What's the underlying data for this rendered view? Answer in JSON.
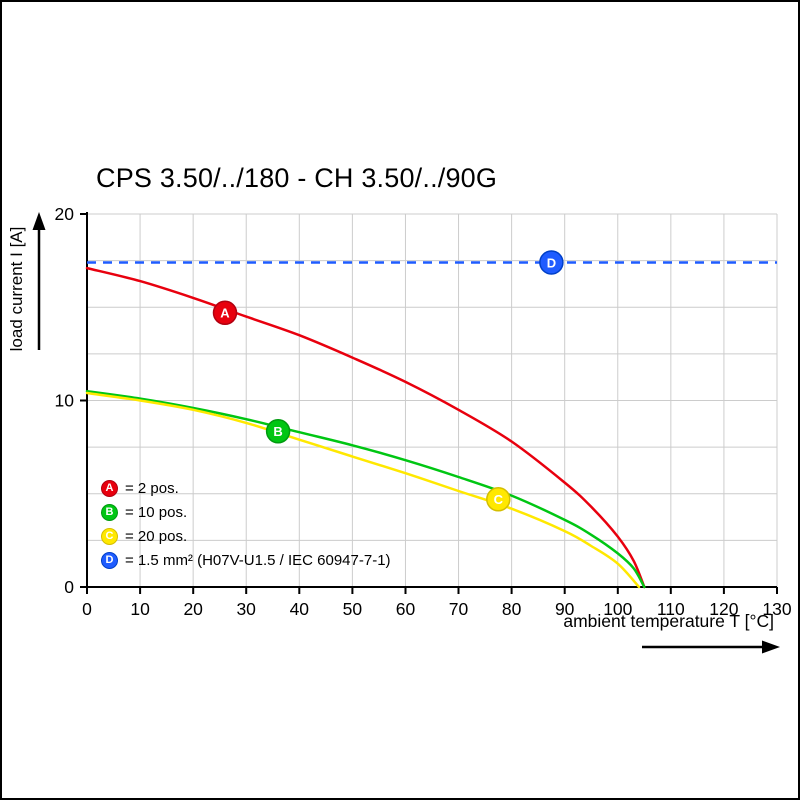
{
  "chart_data": {
    "type": "line",
    "title": "CPS 3.50/../180 - CH 3.50/../90G",
    "xlabel": "ambient temperature T [°C]",
    "ylabel": "load current I [A]",
    "xlim": [
      0,
      130
    ],
    "ylim": [
      0,
      20
    ],
    "x_ticks": [
      0,
      10,
      20,
      30,
      40,
      50,
      60,
      70,
      80,
      90,
      100,
      110,
      120,
      130
    ],
    "y_ticks": [
      0,
      10,
      20
    ],
    "y_grid_step": 2.5,
    "grid": true,
    "grid_color": "#cccccc",
    "axis_color": "#000000",
    "legend_position": "inside bottom-left",
    "series": [
      {
        "id": "A",
        "name": "2 pos.",
        "legend_label": "= 2 pos.",
        "color": "#e8000e",
        "edge": "#b00010",
        "letter_color": "#ffffff",
        "style": "solid",
        "marker_at": [
          26,
          14.7
        ],
        "points": [
          [
            0,
            17.1
          ],
          [
            10,
            16.4
          ],
          [
            20,
            15.5
          ],
          [
            30,
            14.5
          ],
          [
            40,
            13.5
          ],
          [
            50,
            12.3
          ],
          [
            60,
            11.0
          ],
          [
            70,
            9.5
          ],
          [
            80,
            7.8
          ],
          [
            90,
            5.6
          ],
          [
            95,
            4.3
          ],
          [
            100,
            2.7
          ],
          [
            103,
            1.4
          ],
          [
            105,
            0
          ]
        ]
      },
      {
        "id": "B",
        "name": "10 pos.",
        "legend_label": "= 10 pos.",
        "color": "#00c613",
        "edge": "#009a0f",
        "letter_color": "#ffffff",
        "style": "solid",
        "marker_at": [
          36,
          8.35
        ],
        "points": [
          [
            0,
            10.5
          ],
          [
            10,
            10.1
          ],
          [
            20,
            9.6
          ],
          [
            30,
            9.0
          ],
          [
            40,
            8.3
          ],
          [
            50,
            7.6
          ],
          [
            60,
            6.8
          ],
          [
            70,
            5.9
          ],
          [
            80,
            4.9
          ],
          [
            90,
            3.6
          ],
          [
            95,
            2.8
          ],
          [
            100,
            1.8
          ],
          [
            103,
            1.0
          ],
          [
            105,
            0
          ]
        ]
      },
      {
        "id": "C",
        "name": "20 pos.",
        "legend_label": "= 20 pos.",
        "color": "#ffe800",
        "edge": "#d4be00",
        "letter_color": "#ffffff",
        "style": "solid",
        "marker_at": [
          77.5,
          4.7
        ],
        "points": [
          [
            0,
            10.4
          ],
          [
            10,
            10.0
          ],
          [
            20,
            9.5
          ],
          [
            30,
            8.8
          ],
          [
            40,
            7.9
          ],
          [
            50,
            7.0
          ],
          [
            60,
            6.1
          ],
          [
            70,
            5.15
          ],
          [
            80,
            4.2
          ],
          [
            90,
            3.0
          ],
          [
            95,
            2.2
          ],
          [
            100,
            1.25
          ],
          [
            104,
            0
          ]
        ]
      },
      {
        "id": "D",
        "name": "1.5 mm² (H07V-U1.5 / IEC 60947-7-1)",
        "legend_label": "= 1.5 mm² (H07V-U1.5 / IEC 60947-7-1)",
        "color": "#1f5cff",
        "edge": "#0040c8",
        "letter_color": "#ffffff",
        "style": "dashed",
        "marker_at": [
          87.5,
          17.4
        ],
        "points": [
          [
            0,
            17.4
          ],
          [
            130,
            17.4
          ]
        ]
      }
    ]
  }
}
